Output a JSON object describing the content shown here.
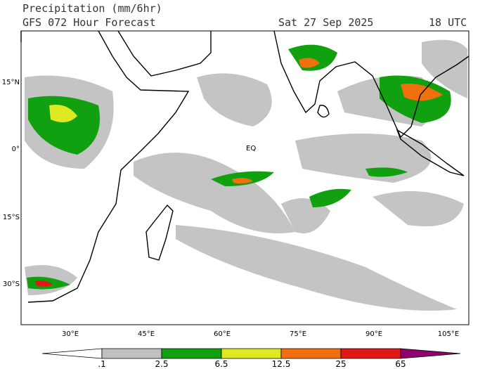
{
  "header": {
    "title": "Precipitation (mm/6hr)",
    "subtitle": "GFS 072 Hour Forecast",
    "date": "Sat 27 Sep 2025",
    "time": "18 UTC"
  },
  "map": {
    "lat_labels": [
      "15°N",
      "0°",
      "15°S",
      "30°S"
    ],
    "lon_labels": [
      "30°E",
      "45°E",
      "60°E",
      "75°E",
      "90°E",
      "105°E"
    ],
    "equator_label": "EQ"
  },
  "legend": {
    "labels": [
      ".1",
      "2.5",
      "6.5",
      "12.5",
      "25",
      "65"
    ],
    "colors": [
      "#ffffff",
      "#c0c0c0",
      "#10a010",
      "#e0e820",
      "#f07010",
      "#e01818",
      "#900070"
    ]
  }
}
